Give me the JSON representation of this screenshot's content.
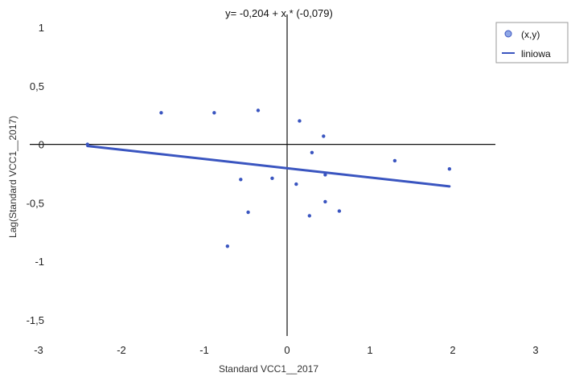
{
  "chart_data": {
    "type": "scatter",
    "title": "y= -0,204 + x * (-0,079)",
    "xlabel": "Standard VCC1__2017",
    "ylabel": "Lag(Standard VCC1__2017)",
    "xlim": [
      -3,
      3
    ],
    "ylim": [
      -1.5,
      1
    ],
    "xticks": [
      {
        "value": -3,
        "label": "-3"
      },
      {
        "value": -2,
        "label": "-2"
      },
      {
        "value": -1,
        "label": "-1"
      },
      {
        "value": 0,
        "label": "0"
      },
      {
        "value": 1,
        "label": "1"
      },
      {
        "value": 2,
        "label": "2"
      },
      {
        "value": 3,
        "label": "3"
      }
    ],
    "yticks": [
      {
        "value": 1,
        "label": "1"
      },
      {
        "value": 0.5,
        "label": "0,5"
      },
      {
        "value": 0,
        "label": "0"
      },
      {
        "value": -0.5,
        "label": "-0,5"
      },
      {
        "value": -1,
        "label": "-1"
      },
      {
        "value": -1.5,
        "label": "-1,5"
      }
    ],
    "grid": false,
    "legend_position": "top-right",
    "series": [
      {
        "name": "(x,y)",
        "kind": "scatter",
        "color": "#3a55c0",
        "points": [
          {
            "x": -2.41,
            "y": 0.0
          },
          {
            "x": -1.52,
            "y": 0.27
          },
          {
            "x": -0.88,
            "y": 0.27
          },
          {
            "x": -0.35,
            "y": 0.29
          },
          {
            "x": 0.15,
            "y": 0.2
          },
          {
            "x": 0.44,
            "y": 0.07
          },
          {
            "x": 0.3,
            "y": -0.07
          },
          {
            "x": 1.3,
            "y": -0.14
          },
          {
            "x": 1.96,
            "y": -0.21
          },
          {
            "x": 0.46,
            "y": -0.26
          },
          {
            "x": -0.18,
            "y": -0.29
          },
          {
            "x": -0.56,
            "y": -0.3
          },
          {
            "x": 0.11,
            "y": -0.34
          },
          {
            "x": 0.46,
            "y": -0.49
          },
          {
            "x": -0.47,
            "y": -0.58
          },
          {
            "x": 0.63,
            "y": -0.57
          },
          {
            "x": 0.27,
            "y": -0.61
          },
          {
            "x": -0.72,
            "y": -0.87
          }
        ]
      },
      {
        "name": "liniowa",
        "kind": "line",
        "color": "#3a55c0",
        "intercept": -0.204,
        "slope": -0.079,
        "x_range": [
          -2.41,
          1.96
        ]
      }
    ]
  }
}
